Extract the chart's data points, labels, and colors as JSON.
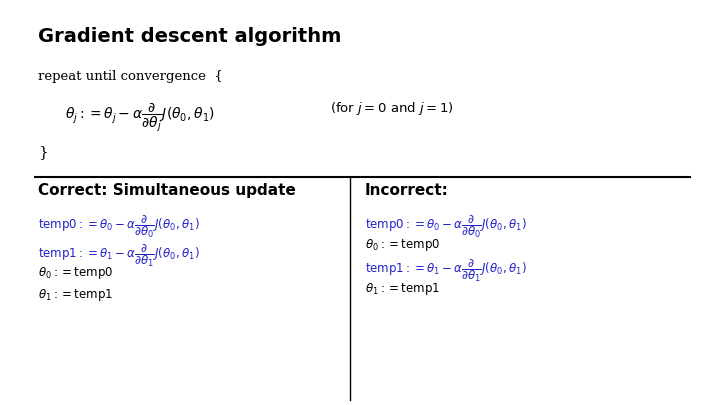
{
  "title": "Gradient descent algorithm",
  "title_fontsize": 14,
  "background_color": "#ffffff",
  "text_color_black": "#000000",
  "text_color_blue": "#2222cc",
  "main_formula": "$\\theta_j := \\theta_j - \\alpha\\dfrac{\\partial}{\\partial\\theta_j}J(\\theta_0, \\theta_1)$",
  "for_label": "(for $j = 0$ and $j = 1$)",
  "repeat_text": "repeat until convergence  {",
  "close_brace": "}",
  "correct_title": "Correct: Simultaneous update",
  "incorrect_title": "Incorrect:",
  "correct_lines": [
    "$\\mathrm{temp0} := \\theta_0 - \\alpha\\dfrac{\\partial}{\\partial\\theta_0}J(\\theta_0, \\theta_1)$",
    "$\\mathrm{temp1} := \\theta_1 - \\alpha\\dfrac{\\partial}{\\partial\\theta_1}J(\\theta_0, \\theta_1)$",
    "$\\theta_0 := \\mathrm{temp0}$",
    "$\\theta_1 := \\mathrm{temp1}$"
  ],
  "incorrect_lines": [
    "$\\mathrm{temp0} := \\theta_0 - \\alpha\\dfrac{\\partial}{\\partial\\theta_0}J(\\theta_0, \\theta_1)$",
    "$\\theta_0 := \\mathrm{temp0}$",
    "$\\mathrm{temp1} := \\theta_1 - \\alpha\\dfrac{\\partial}{\\partial\\theta_1}J(\\theta_0, \\theta_1)$",
    "$\\theta_1 := \\mathrm{temp1}$"
  ],
  "correct_line_colors": [
    "#2222cc",
    "#2222cc",
    "#000000",
    "#000000"
  ],
  "incorrect_line_colors": [
    "#2222cc",
    "#000000",
    "#2222cc",
    "#000000"
  ]
}
